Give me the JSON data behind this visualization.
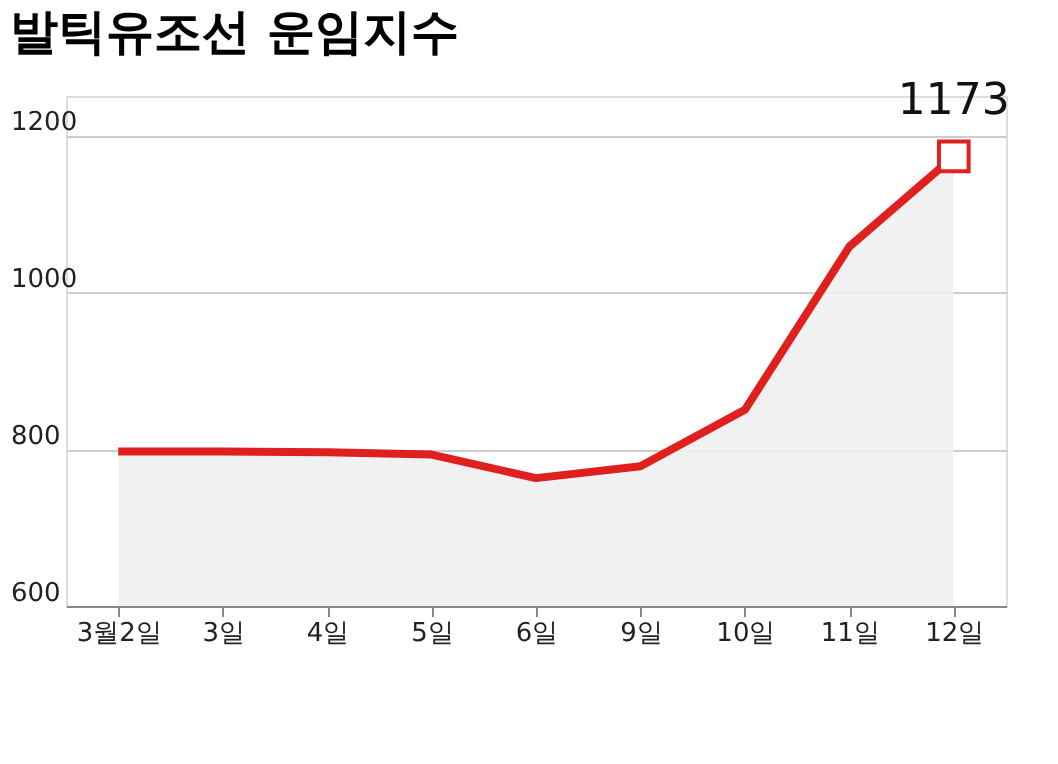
{
  "chart_data": {
    "type": "area",
    "title": "발틱유조선 운임지수",
    "categories": [
      "3월2일",
      "3일",
      "4일",
      "5일",
      "6일",
      "9일",
      "10일",
      "11일",
      "12일"
    ],
    "series": [
      {
        "color": "#e0201e",
        "values": [
          797,
          797,
          796,
          793,
          763,
          778,
          850,
          1058,
          1173
        ]
      }
    ],
    "ylim": [
      600,
      1250
    ],
    "yticks": [
      600,
      800,
      1000,
      1200
    ],
    "grid": "y",
    "annotations": [
      {
        "text": "1173",
        "x": "12일",
        "y": 1173
      }
    ]
  }
}
